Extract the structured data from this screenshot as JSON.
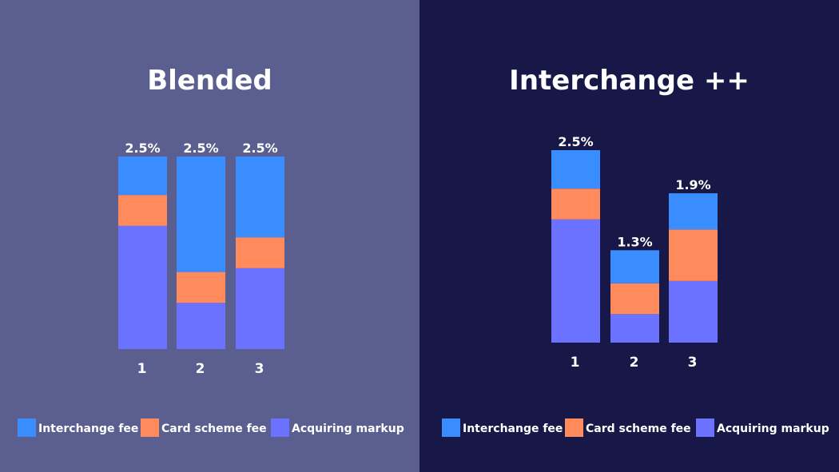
{
  "colors": {
    "interchange": "#3a8dff",
    "card_scheme": "#ff8a5b",
    "acquiring": "#6a72ff",
    "left_bg": "#5a5f8f",
    "right_bg": "#171848"
  },
  "chart_data": [
    {
      "type": "bar",
      "stacked": true,
      "title": "Blended",
      "categories": [
        "1",
        "2",
        "3"
      ],
      "totals_labels": [
        "2.5%",
        "2.5%",
        "2.5%"
      ],
      "series": [
        {
          "name": "Acquiring markup",
          "color_key": "acquiring",
          "values": [
            1.6,
            0.6,
            1.05
          ]
        },
        {
          "name": "Card scheme fee",
          "color_key": "card_scheme",
          "values": [
            0.4,
            0.4,
            0.4
          ]
        },
        {
          "name": "Interchange fee",
          "color_key": "interchange",
          "values": [
            0.5,
            1.5,
            1.05
          ]
        }
      ],
      "ylim": [
        0,
        2.5
      ],
      "legend": "bottom",
      "grid": false
    },
    {
      "type": "bar",
      "stacked": true,
      "title": "Interchange ++",
      "categories": [
        "1",
        "2",
        "3"
      ],
      "totals_labels": [
        "2.5%",
        "1.3%",
        "1.9%"
      ],
      "series": [
        {
          "name": "Acquiring markup",
          "color_key": "acquiring",
          "values": [
            1.6,
            0.37,
            0.8
          ]
        },
        {
          "name": "Card scheme fee",
          "color_key": "card_scheme",
          "values": [
            0.4,
            0.4,
            0.67
          ]
        },
        {
          "name": "Interchange fee",
          "color_key": "interchange",
          "values": [
            0.5,
            0.43,
            0.47
          ]
        }
      ],
      "ylim": [
        0,
        2.5
      ],
      "legend": "bottom",
      "grid": false
    }
  ],
  "legend": [
    {
      "label": "Interchange fee",
      "color_key": "interchange"
    },
    {
      "label": "Card scheme fee",
      "color_key": "card_scheme"
    },
    {
      "label": "Acquiring markup",
      "color_key": "acquiring"
    }
  ]
}
